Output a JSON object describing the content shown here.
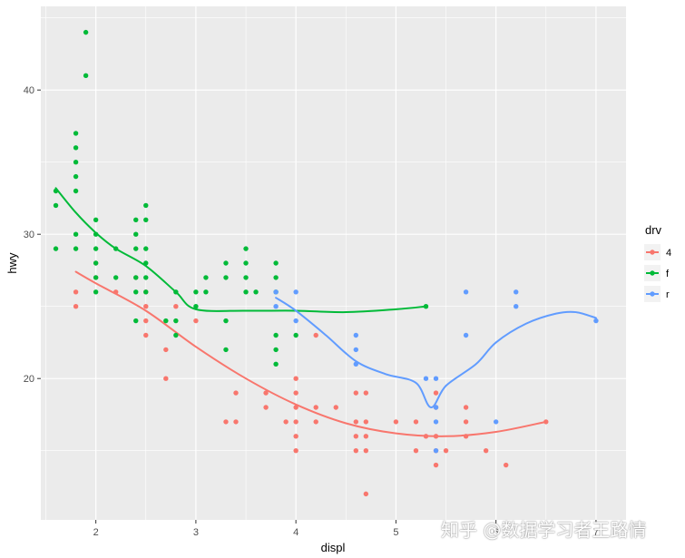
{
  "chart_data": {
    "type": "scatter",
    "xlabel": "displ",
    "ylabel": "hwy",
    "xlim": [
      1.45,
      7.3
    ],
    "ylim": [
      10.2,
      45.8
    ],
    "x_ticks": [
      2,
      3,
      4,
      5,
      6,
      7
    ],
    "y_ticks": [
      20,
      30,
      40
    ],
    "grid": true,
    "legend": {
      "title": "drv",
      "position": "right",
      "entries": [
        "4",
        "f",
        "r"
      ]
    },
    "colors": {
      "4": "#F8766D",
      "f": "#00BA38",
      "r": "#619CFF"
    },
    "series": [
      {
        "name": "4",
        "points": [
          [
            1.8,
            26
          ],
          [
            1.8,
            25
          ],
          [
            2.0,
            28
          ],
          [
            2.0,
            27
          ],
          [
            2.2,
            26
          ],
          [
            2.4,
            27
          ],
          [
            2.5,
            26
          ],
          [
            2.5,
            25
          ],
          [
            2.5,
            24
          ],
          [
            2.5,
            23
          ],
          [
            2.7,
            20
          ],
          [
            2.7,
            22
          ],
          [
            2.8,
            25
          ],
          [
            3.0,
            24
          ],
          [
            3.3,
            17
          ],
          [
            3.4,
            19
          ],
          [
            3.4,
            17
          ],
          [
            3.7,
            19
          ],
          [
            3.7,
            18
          ],
          [
            3.9,
            17
          ],
          [
            4.0,
            17
          ],
          [
            4.0,
            15
          ],
          [
            4.0,
            16
          ],
          [
            4.0,
            18
          ],
          [
            4.0,
            19
          ],
          [
            4.0,
            20
          ],
          [
            4.2,
            23
          ],
          [
            4.2,
            17
          ],
          [
            4.2,
            18
          ],
          [
            4.4,
            18
          ],
          [
            4.6,
            19
          ],
          [
            4.6,
            17
          ],
          [
            4.6,
            16
          ],
          [
            4.6,
            15
          ],
          [
            4.7,
            19
          ],
          [
            4.7,
            17
          ],
          [
            4.7,
            16
          ],
          [
            4.7,
            15
          ],
          [
            4.7,
            12
          ],
          [
            5.0,
            17
          ],
          [
            5.2,
            17
          ],
          [
            5.2,
            15
          ],
          [
            5.3,
            16
          ],
          [
            5.4,
            19
          ],
          [
            5.4,
            18
          ],
          [
            5.4,
            16
          ],
          [
            5.4,
            14
          ],
          [
            5.4,
            15
          ],
          [
            5.5,
            15
          ],
          [
            5.7,
            18
          ],
          [
            5.7,
            17
          ],
          [
            5.7,
            16
          ],
          [
            5.9,
            15
          ],
          [
            6.1,
            14
          ],
          [
            6.5,
            17
          ]
        ],
        "trend": [
          [
            1.8,
            27.4
          ],
          [
            2.0,
            26.6
          ],
          [
            2.5,
            24.7
          ],
          [
            3.0,
            22.2
          ],
          [
            3.5,
            20.0
          ],
          [
            4.0,
            18.2
          ],
          [
            4.5,
            16.9
          ],
          [
            5.0,
            16.2
          ],
          [
            5.5,
            16.0
          ],
          [
            6.0,
            16.3
          ],
          [
            6.5,
            17.0
          ]
        ]
      },
      {
        "name": "f",
        "points": [
          [
            1.6,
            33
          ],
          [
            1.6,
            32
          ],
          [
            1.6,
            29
          ],
          [
            1.8,
            37
          ],
          [
            1.8,
            36
          ],
          [
            1.8,
            35
          ],
          [
            1.8,
            34
          ],
          [
            1.8,
            33
          ],
          [
            1.8,
            30
          ],
          [
            1.8,
            29
          ],
          [
            1.9,
            44
          ],
          [
            1.9,
            41
          ],
          [
            2.0,
            31
          ],
          [
            2.0,
            30
          ],
          [
            2.0,
            29
          ],
          [
            2.0,
            28
          ],
          [
            2.0,
            27
          ],
          [
            2.0,
            26
          ],
          [
            2.2,
            29
          ],
          [
            2.2,
            27
          ],
          [
            2.4,
            31
          ],
          [
            2.4,
            30
          ],
          [
            2.4,
            29
          ],
          [
            2.4,
            27
          ],
          [
            2.4,
            26
          ],
          [
            2.4,
            24
          ],
          [
            2.5,
            32
          ],
          [
            2.5,
            31
          ],
          [
            2.5,
            29
          ],
          [
            2.5,
            28
          ],
          [
            2.5,
            27
          ],
          [
            2.5,
            26
          ],
          [
            2.7,
            24
          ],
          [
            2.8,
            26
          ],
          [
            2.8,
            24
          ],
          [
            2.8,
            23
          ],
          [
            3.0,
            26
          ],
          [
            3.0,
            25
          ],
          [
            3.1,
            27
          ],
          [
            3.1,
            26
          ],
          [
            3.3,
            28
          ],
          [
            3.3,
            27
          ],
          [
            3.3,
            24
          ],
          [
            3.3,
            22
          ],
          [
            3.5,
            29
          ],
          [
            3.5,
            28
          ],
          [
            3.5,
            27
          ],
          [
            3.5,
            26
          ],
          [
            3.6,
            26
          ],
          [
            3.8,
            28
          ],
          [
            3.8,
            27
          ],
          [
            3.8,
            26
          ],
          [
            3.8,
            23
          ],
          [
            3.8,
            22
          ],
          [
            3.8,
            21
          ],
          [
            4.0,
            23
          ],
          [
            5.3,
            25
          ]
        ],
        "trend": [
          [
            1.6,
            33.2
          ],
          [
            1.8,
            31.5
          ],
          [
            2.0,
            30.1
          ],
          [
            2.2,
            29.0
          ],
          [
            2.5,
            27.8
          ],
          [
            2.8,
            26.0
          ],
          [
            3.0,
            24.8
          ],
          [
            3.5,
            24.7
          ],
          [
            4.0,
            24.7
          ],
          [
            4.5,
            24.6
          ],
          [
            5.0,
            24.8
          ],
          [
            5.3,
            25.0
          ]
        ]
      },
      {
        "name": "r",
        "points": [
          [
            3.8,
            25
          ],
          [
            3.8,
            26
          ],
          [
            4.0,
            26
          ],
          [
            4.0,
            24
          ],
          [
            4.6,
            23
          ],
          [
            4.6,
            22
          ],
          [
            4.6,
            21
          ],
          [
            5.3,
            20
          ],
          [
            5.4,
            20
          ],
          [
            5.4,
            18
          ],
          [
            5.4,
            17
          ],
          [
            5.4,
            15
          ],
          [
            5.7,
            26
          ],
          [
            5.7,
            23
          ],
          [
            6.0,
            17
          ],
          [
            6.2,
            26
          ],
          [
            6.2,
            25
          ],
          [
            7.0,
            24
          ]
        ],
        "trend": [
          [
            3.8,
            25.6
          ],
          [
            4.0,
            24.7
          ],
          [
            4.3,
            23.0
          ],
          [
            4.6,
            21.2
          ],
          [
            4.9,
            20.3
          ],
          [
            5.2,
            19.7
          ],
          [
            5.35,
            18.0
          ],
          [
            5.5,
            19.5
          ],
          [
            5.8,
            21.0
          ],
          [
            6.0,
            22.5
          ],
          [
            6.3,
            23.8
          ],
          [
            6.6,
            24.5
          ],
          [
            6.8,
            24.6
          ],
          [
            7.0,
            24.2
          ]
        ]
      }
    ]
  },
  "watermark": "知乎 @数据学习者王路情"
}
